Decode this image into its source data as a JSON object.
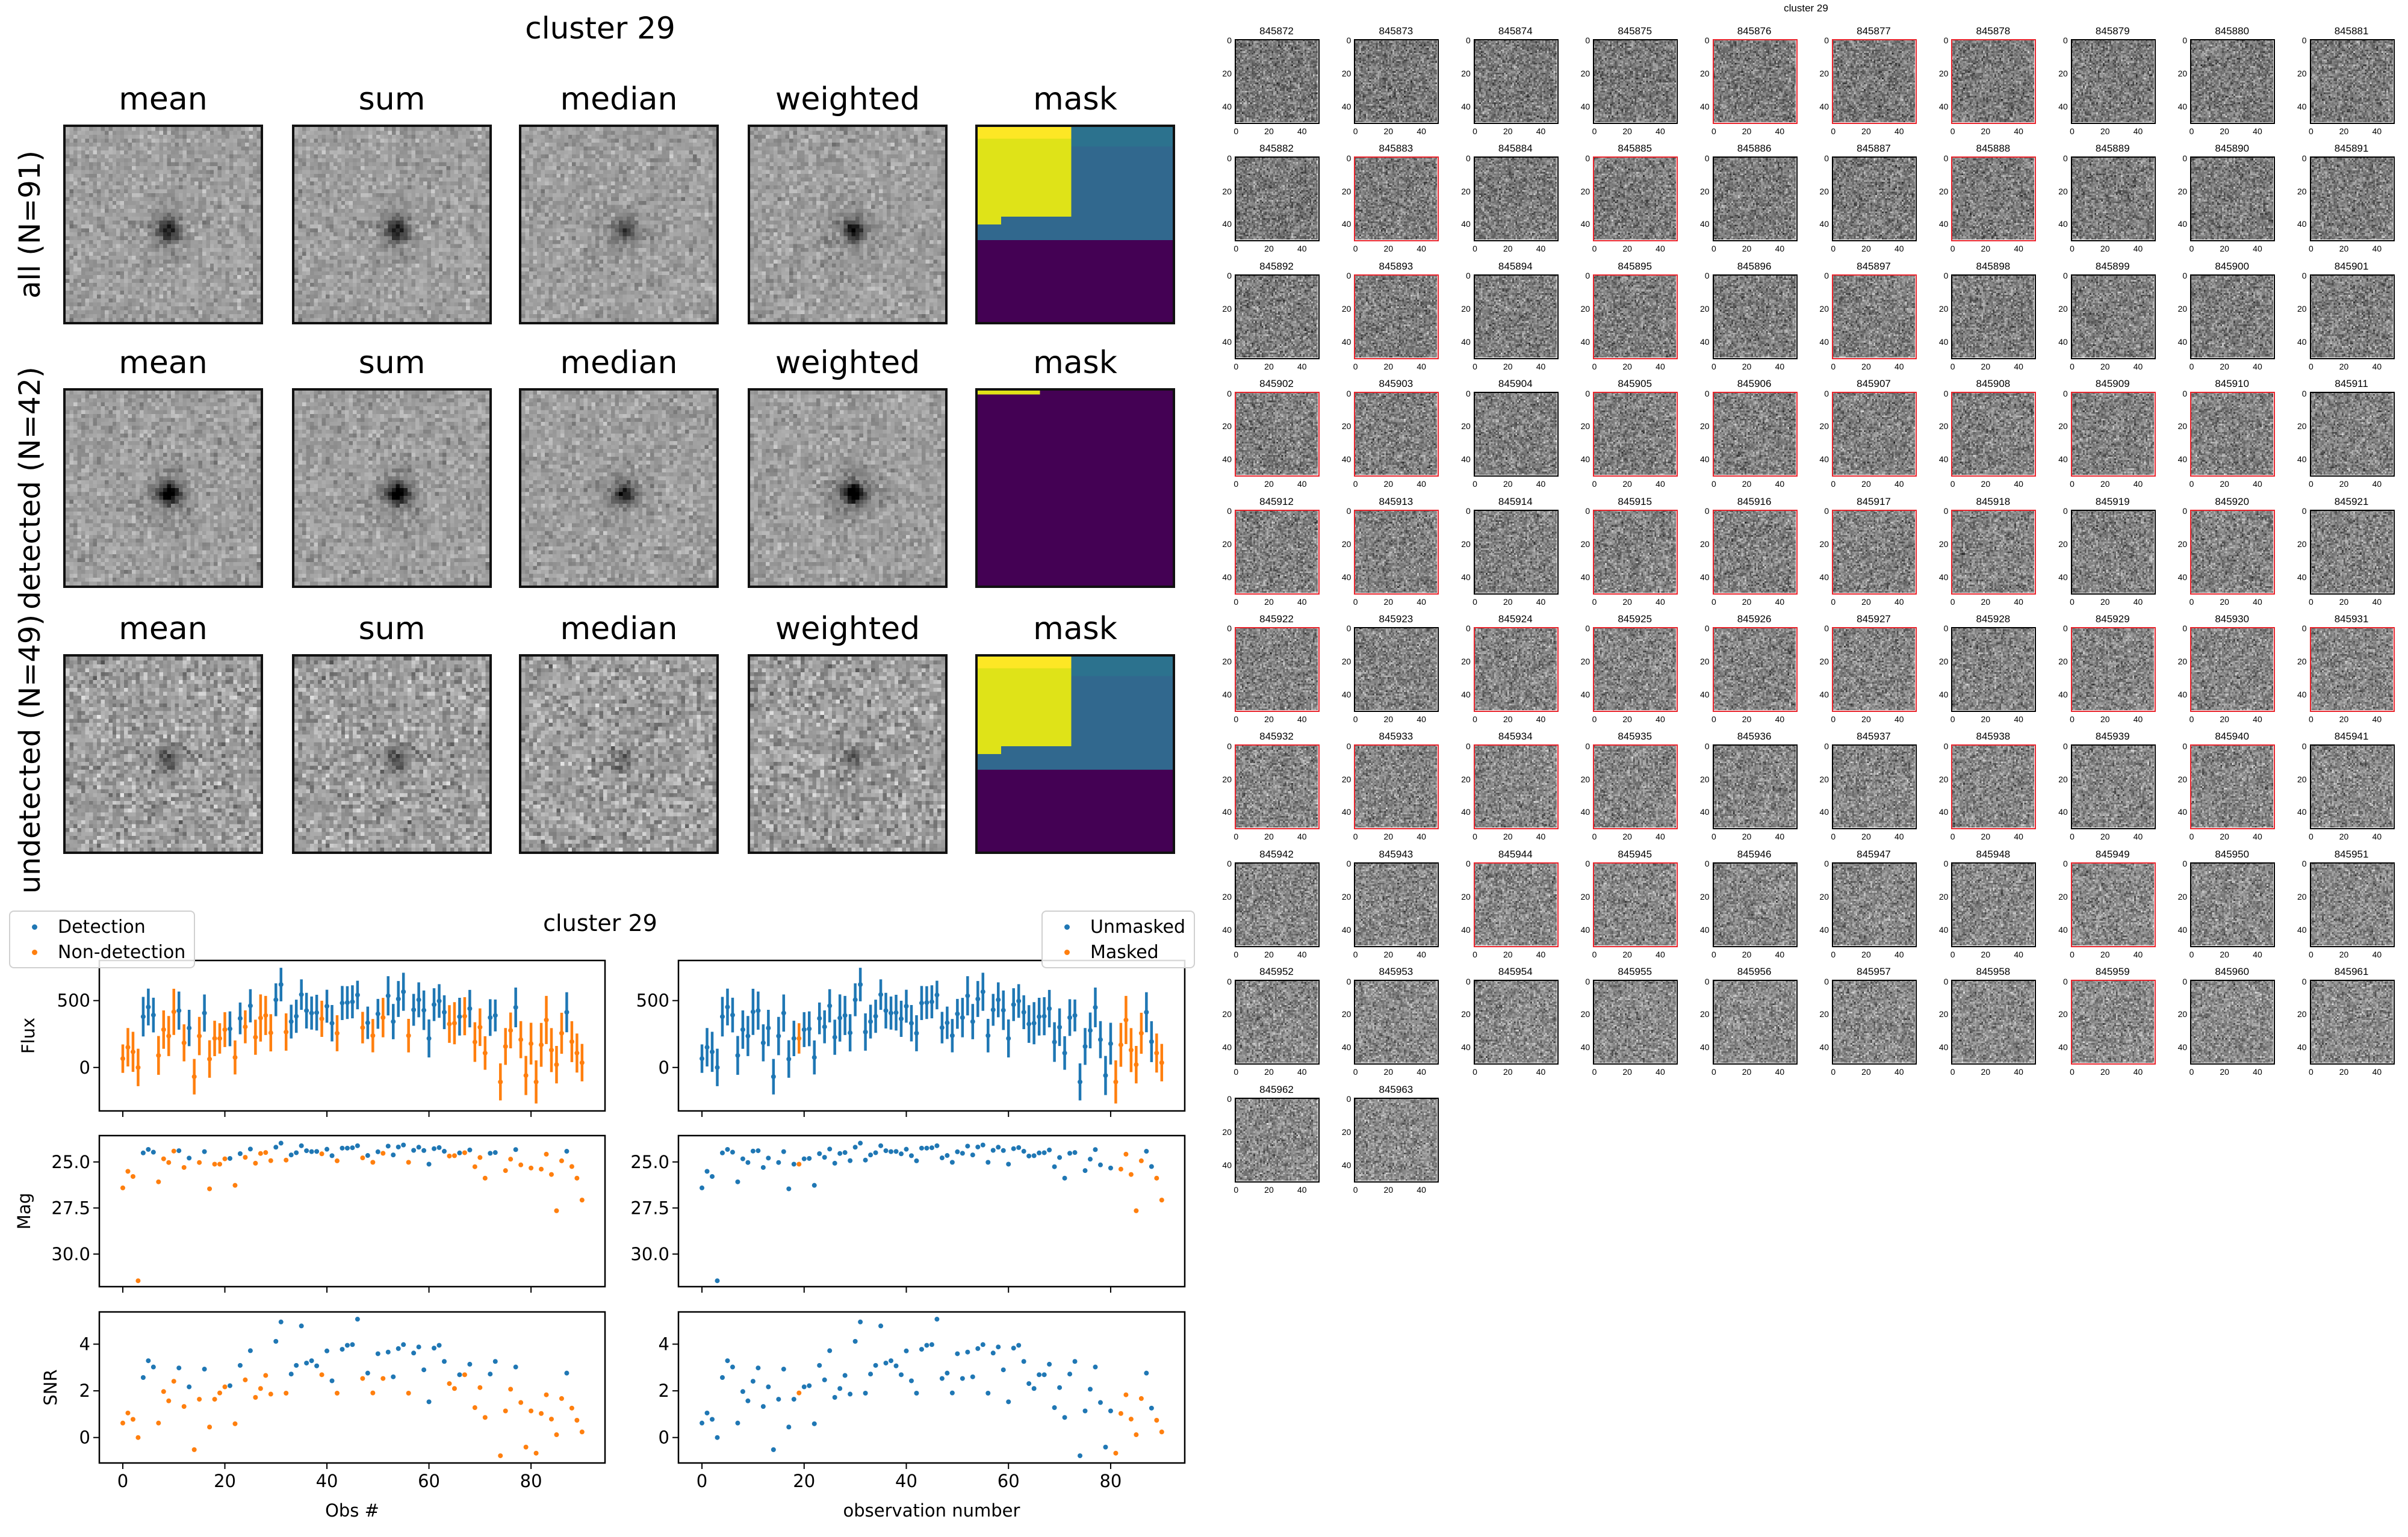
{
  "title": "cluster 29",
  "stack_panels": {
    "columns": [
      "mean",
      "sum",
      "median",
      "weighted",
      "mask"
    ],
    "rows": [
      {
        "label": "all (N=91)",
        "mask": "full",
        "signal": 0.45
      },
      {
        "label": "detected (N=42)",
        "mask": "sliver",
        "signal": 0.6
      },
      {
        "label": "undetected (N=49)",
        "mask": "full",
        "signal": 0.22
      }
    ]
  },
  "colors": {
    "blue": "#1f77b4",
    "orange": "#ff7f0e",
    "highlight": "#e8242c",
    "mask_yellow": "#dfe318",
    "mask_yellow_top": "#fde725",
    "mask_teal": "#31688e",
    "mask_teal_top": "#2c728e",
    "mask_purple": "#440154"
  },
  "lightcurves": {
    "subtitle": "cluster 29",
    "left": {
      "xlabel": "Obs #",
      "legend": [
        "Detection",
        "Non-detection"
      ],
      "color_by": "detected"
    },
    "right": {
      "xlabel": "observation number",
      "legend": [
        "Unmasked",
        "Masked"
      ],
      "color_by": "masked"
    },
    "ylabels": {
      "flux": "Flux",
      "mag": "Mag",
      "snr": "SNR"
    }
  },
  "chart_data": {
    "type": "scatter",
    "xlim": [
      -4.6,
      94.5
    ],
    "xticks": [
      0,
      20,
      40,
      60,
      80
    ],
    "xtick_labels": [
      "0",
      "20",
      "40",
      "60",
      "80"
    ],
    "axes": {
      "flux": {
        "ylim": [
          -325,
          800
        ],
        "yticks": [
          0,
          500
        ],
        "ytick_labels": [
          "0",
          "500"
        ],
        "inverted": false,
        "errorbars": true
      },
      "mag": {
        "ylim": [
          23.57,
          31.77
        ],
        "yticks": [
          25.0,
          27.5,
          30.0
        ],
        "ytick_labels": [
          "25.0",
          "27.5",
          "30.0"
        ],
        "inverted": true,
        "errorbars": false
      },
      "snr": {
        "ylim": [
          -1.09,
          5.38
        ],
        "yticks": [
          0,
          2,
          4
        ],
        "ytick_labels": [
          "0",
          "2",
          "4"
        ],
        "inverted": false,
        "errorbars": false
      }
    },
    "observations": {
      "flux": [
        66,
        151,
        117,
        0,
        380,
        452,
        392,
        90,
        283,
        235,
        416,
        425,
        184,
        295,
        -69,
        235,
        407,
        63,
        217,
        217,
        283,
        289,
        75,
        367,
        304,
        461,
        226,
        370,
        389,
        259,
        506,
        620,
        265,
        343,
        383,
        545,
        425,
        407,
        410,
        364,
        458,
        331,
        256,
        482,
        485,
        491,
        542,
        298,
        334,
        238,
        401,
        373,
        536,
        343,
        512,
        566,
        238,
        431,
        506,
        428,
        217,
        470,
        497,
        413,
        325,
        331,
        380,
        383,
        440,
        190,
        301,
        108,
        373,
        389,
        -108,
        157,
        277,
        449,
        208,
        -60,
        178,
        -108,
        169,
        355,
        130,
        21,
        256,
        413,
        193,
        108,
        36
      ],
      "snr": [
        0.62,
        1.05,
        0.78,
        0.0,
        2.57,
        3.29,
        3.02,
        0.62,
        1.97,
        1.57,
        2.41,
        2.98,
        1.33,
        2.17,
        -0.52,
        1.64,
        2.93,
        0.45,
        1.64,
        1.91,
        2.17,
        2.22,
        0.59,
        3.09,
        2.47,
        3.72,
        1.72,
        2.1,
        2.66,
        1.86,
        4.12,
        4.95,
        1.9,
        2.72,
        3.09,
        4.78,
        3.19,
        3.29,
        3.07,
        2.69,
        3.71,
        2.43,
        1.9,
        3.78,
        3.95,
        3.98,
        5.07,
        2.53,
        2.76,
        1.91,
        3.59,
        2.53,
        3.66,
        2.6,
        3.81,
        3.98,
        1.9,
        3.62,
        3.88,
        2.9,
        1.53,
        3.83,
        3.95,
        3.26,
        2.31,
        2.1,
        2.69,
        2.69,
        3.14,
        1.28,
        2.14,
        0.86,
        2.72,
        3.26,
        -0.78,
        1.14,
        2.07,
        3.02,
        1.5,
        -0.41,
        1.14,
        -0.67,
        1.03,
        1.83,
        0.79,
        0.12,
        1.67,
        2.76,
        1.26,
        0.74,
        0.24
      ],
      "mag": [
        26.41,
        25.51,
        25.79,
        31.45,
        24.51,
        24.32,
        24.47,
        26.08,
        24.83,
        25.03,
        24.41,
        24.39,
        25.3,
        24.79,
        null,
        25.03,
        24.44,
        26.46,
        25.12,
        25.12,
        24.83,
        24.81,
        26.27,
        24.55,
        24.75,
        24.3,
        25.07,
        24.54,
        24.49,
        24.93,
        24.2,
        23.98,
        24.9,
        24.62,
        24.5,
        24.12,
        24.39,
        24.44,
        24.43,
        24.56,
        24.31,
        24.66,
        24.94,
        24.25,
        24.25,
        24.23,
        24.12,
        24.78,
        24.65,
        25.02,
        24.45,
        24.53,
        24.14,
        24.62,
        24.19,
        24.08,
        25.02,
        24.37,
        24.2,
        24.38,
        25.12,
        24.28,
        24.22,
        24.42,
        24.68,
        24.66,
        24.51,
        24.5,
        24.35,
        25.26,
        24.76,
        25.88,
        24.53,
        24.49,
        null,
        25.47,
        24.85,
        24.33,
        25.16,
        null,
        25.33,
        null,
        25.39,
        24.58,
        25.68,
        27.65,
        24.94,
        24.42,
        25.25,
        25.88,
        27.07
      ],
      "detected": [
        0,
        0,
        0,
        0,
        1,
        1,
        1,
        0,
        0,
        0,
        0,
        1,
        0,
        1,
        0,
        0,
        1,
        0,
        0,
        0,
        0,
        1,
        0,
        1,
        0,
        1,
        0,
        0,
        0,
        0,
        1,
        1,
        0,
        1,
        1,
        1,
        1,
        1,
        1,
        0,
        1,
        1,
        0,
        1,
        1,
        1,
        1,
        0,
        1,
        0,
        1,
        0,
        1,
        1,
        1,
        1,
        0,
        1,
        1,
        1,
        1,
        1,
        1,
        1,
        0,
        0,
        1,
        0,
        1,
        0,
        0,
        0,
        1,
        1,
        0,
        0,
        0,
        1,
        0,
        0,
        0,
        0,
        0,
        0,
        0,
        0,
        0,
        1,
        0,
        0,
        0
      ],
      "masked": [
        0,
        0,
        0,
        0,
        0,
        0,
        0,
        0,
        0,
        0,
        0,
        0,
        0,
        0,
        0,
        0,
        0,
        0,
        0,
        1,
        0,
        0,
        0,
        0,
        0,
        0,
        0,
        0,
        0,
        0,
        0,
        0,
        0,
        0,
        0,
        0,
        0,
        0,
        0,
        0,
        0,
        0,
        0,
        0,
        0,
        0,
        0,
        0,
        0,
        0,
        0,
        0,
        0,
        0,
        0,
        0,
        0,
        0,
        0,
        0,
        0,
        0,
        0,
        0,
        0,
        0,
        0,
        0,
        0,
        0,
        0,
        0,
        0,
        0,
        0,
        0,
        0,
        0,
        0,
        0,
        0,
        1,
        1,
        1,
        1,
        1,
        1,
        0,
        0,
        1,
        1
      ]
    }
  },
  "thumbnails": {
    "title": "cluster 29",
    "first_id": 845872,
    "count": 92,
    "tick_labels": [
      "0",
      "20",
      "40"
    ]
  }
}
